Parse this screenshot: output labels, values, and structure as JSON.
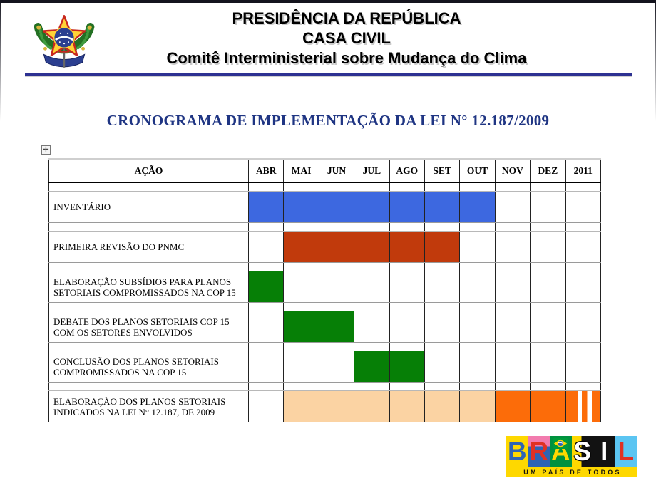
{
  "header": {
    "org_line1": "PRESIDÊNCIA DA REPÚBLICA",
    "org_line2": "CASA CIVIL",
    "org_line3": "Comitê Interministerial sobre Mudança do Clima"
  },
  "title": "CRONOGRAMA DE IMPLEMENTAÇÃO DA LEI N° 12.187/2009",
  "icons": {
    "table_handle": "✛"
  },
  "chart_data": {
    "type": "gantt",
    "title": "CRONOGRAMA DE IMPLEMENTAÇÃO DA LEI N° 12.187/2009",
    "columns": [
      "AÇÃO",
      "ABR",
      "MAI",
      "JUN",
      "JUL",
      "AGO",
      "SET",
      "OUT",
      "NOV",
      "DEZ",
      "2011"
    ],
    "colors": {
      "blue": "#3D68E0",
      "red": "#C13A0C",
      "green": "#067F06",
      "peach": "#FBD3A3",
      "orange": "#FC6C09"
    },
    "rows": [
      {
        "label": "INVENTÁRIO",
        "bars": [
          {
            "start": "ABR",
            "end": "OUT",
            "color": "blue"
          }
        ]
      },
      {
        "label": "PRIMEIRA REVISÃO DO PNMC",
        "bars": [
          {
            "start": "MAI",
            "end": "SET",
            "color": "red"
          }
        ]
      },
      {
        "label": "ELABORAÇÃO SUBSÍDIOS PARA PLANOS SETORIAIS COMPROMISSADOS NA COP 15",
        "bars": [
          {
            "start": "ABR",
            "end": "ABR",
            "color": "green"
          }
        ]
      },
      {
        "label": "DEBATE DOS PLANOS SETORIAIS COP 15 COM OS SETORES ENVOLVIDOS",
        "bars": [
          {
            "start": "MAI",
            "end": "JUN",
            "color": "green"
          }
        ]
      },
      {
        "label": "CONCLUSÃO DOS PLANOS SETORIAIS COMPROMISSADOS NA COP 15",
        "bars": [
          {
            "start": "JUL",
            "end": "AGO",
            "color": "green"
          }
        ]
      },
      {
        "label": "ELABORAÇÃO DOS PLANOS SETORIAIS INDICADOS NA LEI N° 12.187, DE 2009",
        "bars": [
          {
            "start": "MAI",
            "end": "OUT",
            "color": "peach"
          },
          {
            "start": "NOV",
            "end": "DEZ",
            "color": "orange"
          },
          {
            "start": "2011",
            "end": "2011",
            "color": "orange",
            "pattern": "striped"
          }
        ]
      }
    ]
  },
  "logo": {
    "letters": [
      {
        "char": "B"
      },
      {
        "char": "R"
      },
      {
        "char": "A"
      },
      {
        "char": "S"
      },
      {
        "char": "I"
      },
      {
        "char": "L"
      }
    ],
    "tagline": "UM PAÍS DE TODOS"
  },
  "colors": {
    "divider": "#2D3192",
    "title_text": "#1F3583",
    "edge": "#14141e",
    "logo_yellow": "#FED800"
  }
}
